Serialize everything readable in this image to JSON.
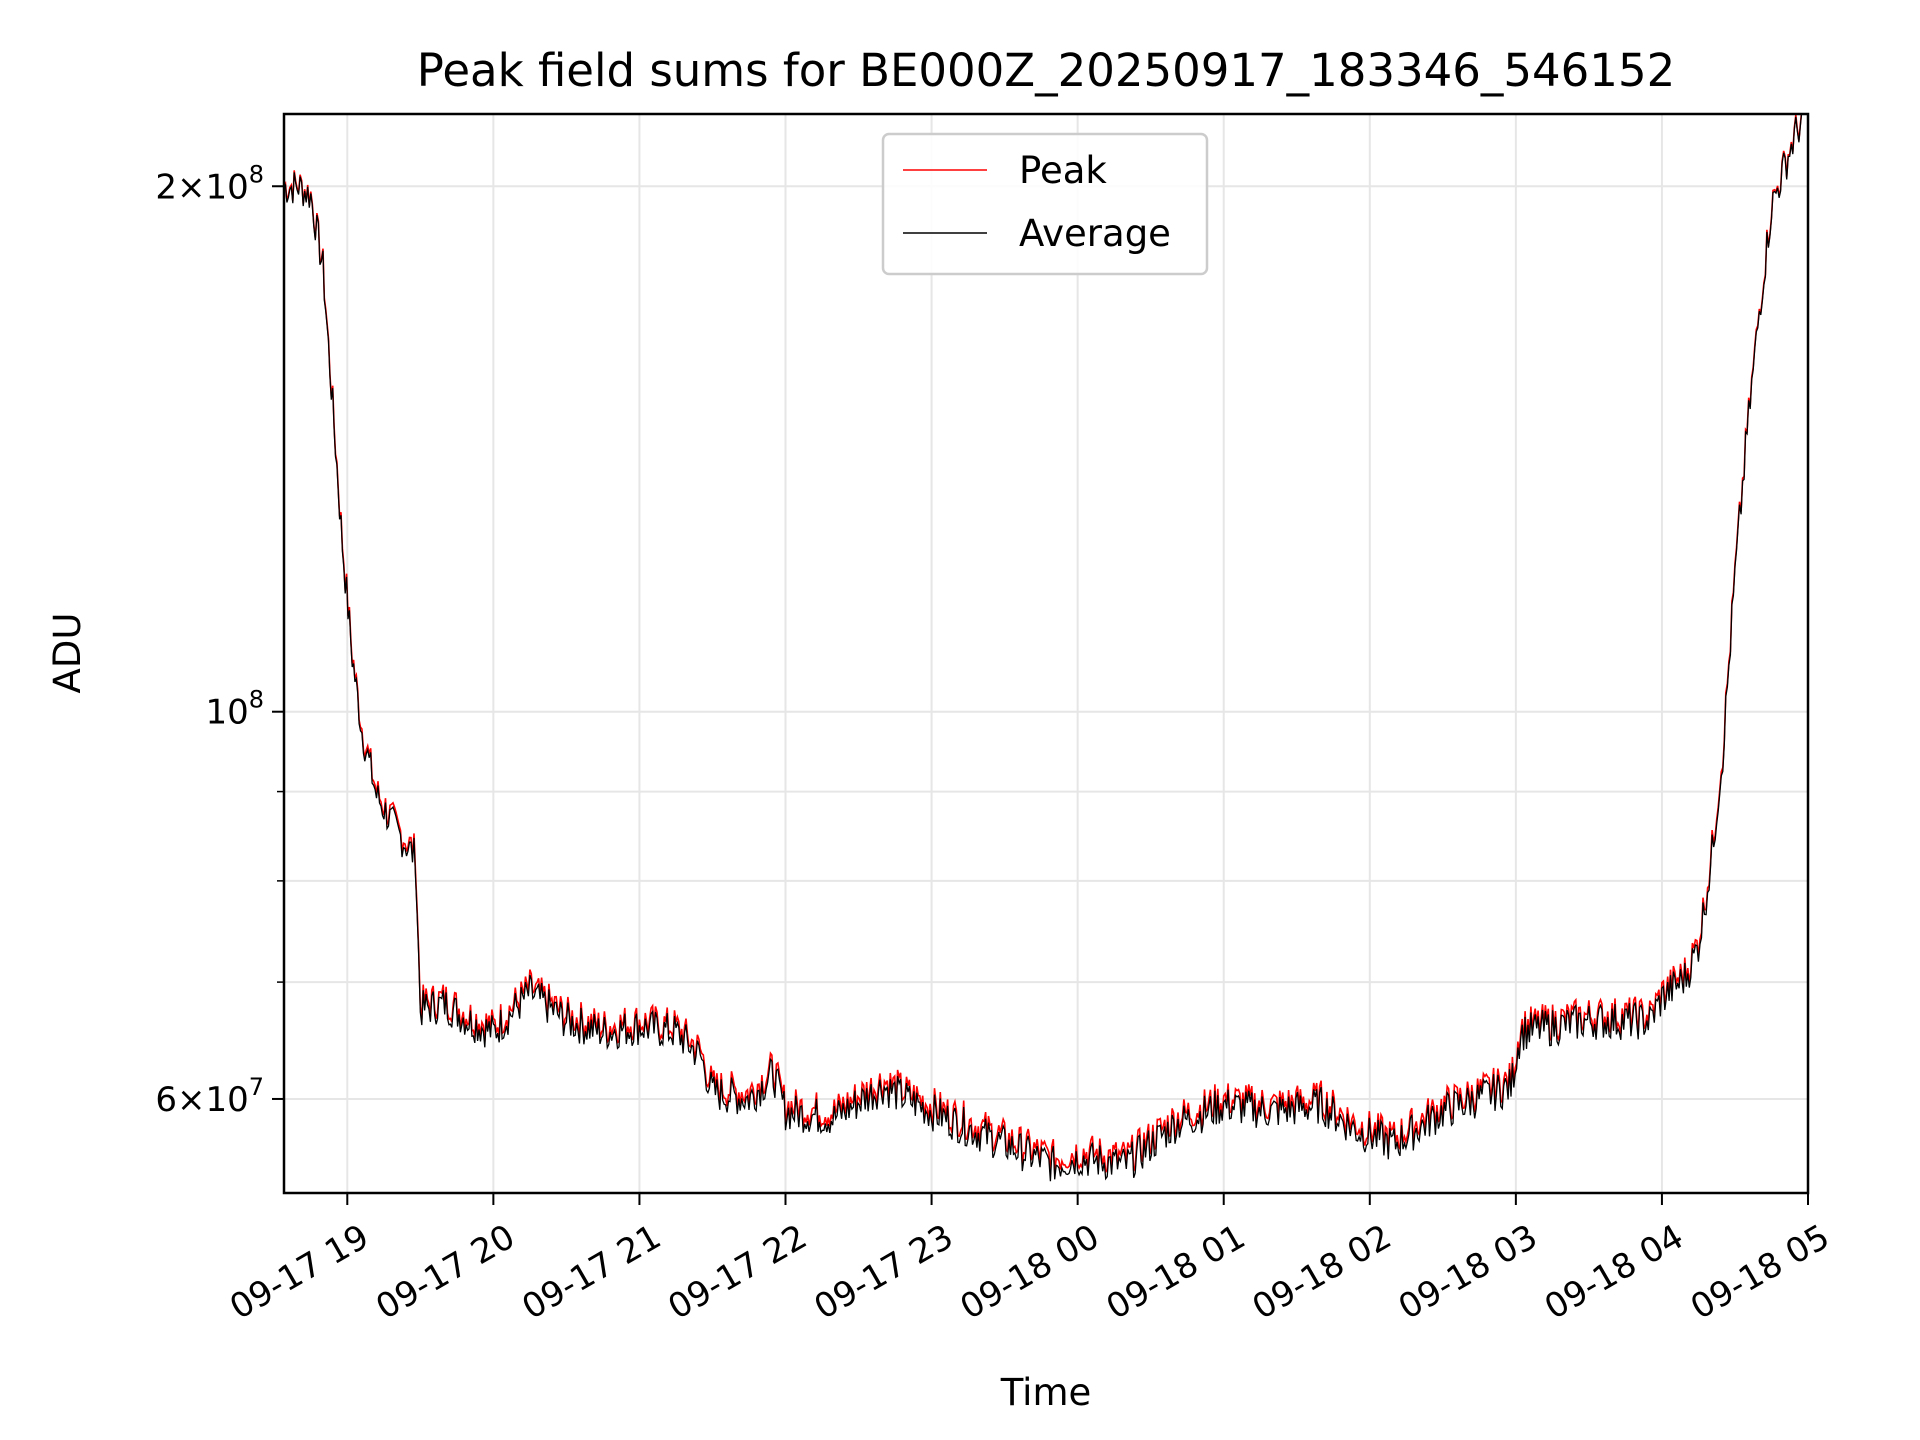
{
  "chart_data": {
    "type": "line",
    "title": "Peak field sums for BE000Z_20250917_183346_546152",
    "xlabel": "Time",
    "ylabel": "ADU",
    "yscale": "log",
    "grid": true,
    "legend_position": "top-center",
    "x_ticks": [
      "09-17 19",
      "09-17 20",
      "09-17 21",
      "09-17 22",
      "09-17 23",
      "09-18 00",
      "09-18 01",
      "09-18 02",
      "09-18 03",
      "09-18 04",
      "09-18 05"
    ],
    "y_ticks": [
      {
        "value": 60000000,
        "base": "6×10",
        "exp": "7"
      },
      {
        "value": 100000000,
        "base": "10",
        "exp": "8"
      },
      {
        "value": 200000000,
        "base": "2×10",
        "exp": "8"
      }
    ],
    "xlim": [
      "2025-09-17 18:34",
      "2025-09-18 05:00"
    ],
    "ylim": [
      53000000,
      220000000
    ],
    "x": [
      "2025-09-17 18:34",
      "2025-09-17 18:40",
      "2025-09-17 18:45",
      "2025-09-17 18:50",
      "2025-09-17 18:54",
      "2025-09-17 18:58",
      "2025-09-17 19:02",
      "2025-09-17 19:06",
      "2025-09-17 19:12",
      "2025-09-17 19:20",
      "2025-09-17 19:28",
      "2025-09-17 19:30",
      "2025-09-17 19:40",
      "2025-09-17 19:50",
      "2025-09-17 20:00",
      "2025-09-17 20:15",
      "2025-09-17 20:30",
      "2025-09-17 20:45",
      "2025-09-17 21:00",
      "2025-09-17 21:15",
      "2025-09-17 21:25",
      "2025-09-17 21:30",
      "2025-09-17 21:45",
      "2025-09-17 21:55",
      "2025-09-17 22:00",
      "2025-09-17 22:20",
      "2025-09-17 22:40",
      "2025-09-17 23:00",
      "2025-09-17 23:30",
      "2025-09-17 23:50",
      "2025-09-18 00:00",
      "2025-09-18 00:20",
      "2025-09-18 00:40",
      "2025-09-18 01:00",
      "2025-09-18 01:20",
      "2025-09-18 01:40",
      "2025-09-18 01:55",
      "2025-09-18 02:10",
      "2025-09-18 02:30",
      "2025-09-18 02:58",
      "2025-09-18 03:02",
      "2025-09-18 03:30",
      "2025-09-18 03:55",
      "2025-09-18 04:00",
      "2025-09-18 04:10",
      "2025-09-18 04:15",
      "2025-09-18 04:20",
      "2025-09-18 04:25",
      "2025-09-18 04:30",
      "2025-09-18 04:35",
      "2025-09-18 04:40",
      "2025-09-18 04:45",
      "2025-09-18 04:50",
      "2025-09-18 04:55",
      "2025-09-18 05:00"
    ],
    "series": [
      {
        "name": "Peak",
        "color": "#ff0000",
        "values": [
          200000000,
          200500000,
          198000000,
          180000000,
          150000000,
          125000000,
          108000000,
          98000000,
          90000000,
          86000000,
          83000000,
          68000000,
          68500000,
          67000000,
          66000000,
          69500000,
          67000000,
          66000000,
          66500000,
          66000000,
          64000000,
          61000000,
          60500000,
          62500000,
          59500000,
          59000000,
          61500000,
          59500000,
          57000000,
          55500000,
          56000000,
          55500000,
          58500000,
          60000000,
          59500000,
          60000000,
          58000000,
          57000000,
          59500000,
          61500000,
          66000000,
          67000000,
          67000000,
          69000000,
          71000000,
          74000000,
          82000000,
          95000000,
          120000000,
          145000000,
          170000000,
          195000000,
          205000000,
          215000000,
          222000000
        ]
      },
      {
        "name": "Average",
        "color": "#000000",
        "values": [
          199500000,
          200000000,
          197500000,
          179500000,
          149500000,
          124500000,
          107500000,
          97500000,
          89500000,
          85500000,
          82500000,
          67500000,
          68000000,
          66500000,
          65500000,
          69000000,
          66500000,
          65500000,
          66000000,
          65500000,
          63500000,
          60500000,
          60000000,
          62000000,
          59000000,
          58500000,
          61000000,
          59000000,
          56500000,
          55000000,
          55500000,
          55000000,
          58000000,
          59500000,
          59000000,
          59500000,
          57500000,
          56500000,
          59000000,
          61000000,
          65500000,
          66500000,
          66500000,
          68500000,
          70500000,
          73500000,
          81500000,
          94500000,
          119500000,
          144500000,
          169500000,
          194500000,
          204500000,
          214500000,
          221500000
        ]
      }
    ]
  }
}
